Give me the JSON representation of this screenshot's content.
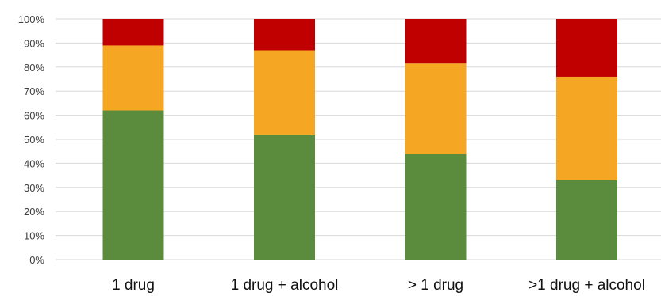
{
  "chart_data": {
    "type": "bar",
    "stacked": true,
    "percent_stacked": true,
    "categories": [
      "1 drug",
      "1 drug + alcohol",
      "> 1 drug",
      ">1 drug + alcohol"
    ],
    "series": [
      {
        "color": "#5b8c3e",
        "values": [
          62,
          52,
          44,
          33
        ]
      },
      {
        "color": "#f5a623",
        "values": [
          27,
          35,
          37.5,
          43
        ]
      },
      {
        "color": "#c00000",
        "values": [
          11,
          13,
          18.5,
          24
        ]
      }
    ],
    "yticks": [
      "0%",
      "10%",
      "20%",
      "30%",
      "40%",
      "50%",
      "60%",
      "70%",
      "80%",
      "90%",
      "100%"
    ],
    "ylim": [
      0,
      100
    ],
    "grid": true,
    "legend": "none"
  }
}
